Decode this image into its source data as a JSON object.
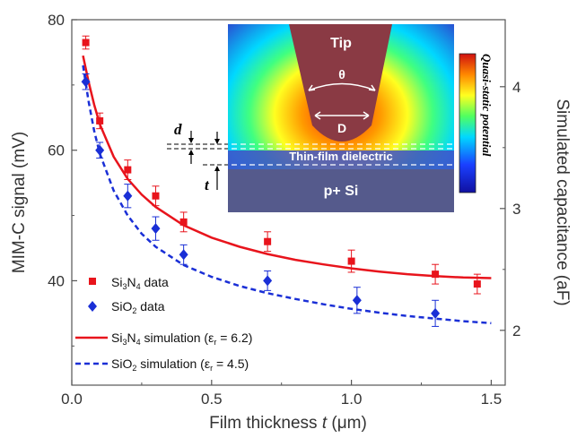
{
  "chart_data": {
    "type": "scatter",
    "title": "",
    "xlabel": "Film thickness t (μm)",
    "xlabel_parts": {
      "before": "Film thickness ",
      "italic": "t",
      "after": " (μm)"
    },
    "ylabel_left": "MIM-C signal (mV)",
    "ylabel_right": "Simulated capacitance (aF)",
    "xlim": [
      0.0,
      1.55
    ],
    "ylim_left": [
      24,
      80
    ],
    "ylim_right": [
      1.55,
      4.55
    ],
    "x_ticks": [
      0.0,
      0.5,
      1.0,
      1.5
    ],
    "x_tick_labels": [
      "0.0",
      "0.5",
      "1.0",
      "1.5"
    ],
    "y_left_ticks": [
      40,
      60,
      80
    ],
    "y_left_tick_labels": [
      "40",
      "60",
      "80"
    ],
    "y_right_ticks": [
      2,
      3,
      4
    ],
    "y_right_tick_labels": [
      "2",
      "3",
      "4"
    ],
    "grid": false,
    "legend_placement": "bottom-left",
    "series": [
      {
        "name": "Si3N4 data",
        "legend_label": {
          "pre": "Si",
          "sub1": "3",
          "mid": "N",
          "sub2": "4",
          "post": " data"
        },
        "kind": "points",
        "marker": "square",
        "color": "#e8141c",
        "x": [
          0.05,
          0.1,
          0.2,
          0.3,
          0.4,
          0.7,
          1.0,
          1.3,
          1.45
        ],
        "y": [
          76.5,
          64.5,
          57,
          53,
          49,
          46,
          43,
          41,
          39.5
        ],
        "err": [
          1.0,
          1.2,
          1.5,
          1.5,
          1.5,
          1.5,
          1.7,
          1.5,
          1.5
        ]
      },
      {
        "name": "SiO2 data",
        "legend_label": {
          "pre": "SiO",
          "sub1": "2",
          "mid": "",
          "sub2": "",
          "post": " data"
        },
        "kind": "points",
        "marker": "diamond",
        "color": "#1a2fd6",
        "x": [
          0.05,
          0.1,
          0.2,
          0.3,
          0.4,
          0.7,
          1.02,
          1.3
        ],
        "y": [
          70.5,
          60,
          53,
          48,
          44,
          40,
          37,
          35
        ],
        "err": [
          1.2,
          1.2,
          1.8,
          1.8,
          1.5,
          1.5,
          2.0,
          2.0
        ]
      },
      {
        "name": "Si3N4 simulation (εr = 6.2)",
        "legend_label": {
          "pre": "Si",
          "sub1": "3",
          "mid": "N",
          "sub2": "4",
          "post": " simulation (ε",
          "eps_sub": "r",
          "tail": " = 6.2)"
        },
        "kind": "line",
        "style": "solid",
        "color": "#e8141c",
        "x": [
          0.04,
          0.06,
          0.08,
          0.1,
          0.15,
          0.2,
          0.25,
          0.3,
          0.4,
          0.5,
          0.6,
          0.7,
          0.8,
          0.9,
          1.0,
          1.1,
          1.2,
          1.3,
          1.4,
          1.5
        ],
        "y": [
          74.5,
          70.5,
          67,
          64,
          59,
          55.6,
          53.2,
          51.3,
          48.5,
          46.6,
          45.2,
          44.1,
          43.2,
          42.5,
          41.9,
          41.4,
          41.0,
          40.7,
          40.5,
          40.4
        ]
      },
      {
        "name": "SiO2 simulation (εr = 4.5)",
        "legend_label": {
          "pre": "SiO",
          "sub1": "2",
          "mid": "",
          "sub2": "",
          "post": " simulation (ε",
          "eps_sub": "r",
          "tail": " = 4.5)"
        },
        "kind": "line",
        "style": "dashed",
        "color": "#1a2fd6",
        "x": [
          0.04,
          0.06,
          0.08,
          0.1,
          0.15,
          0.2,
          0.25,
          0.3,
          0.4,
          0.5,
          0.6,
          0.7,
          0.8,
          0.9,
          1.0,
          1.1,
          1.2,
          1.3,
          1.4,
          1.5
        ],
        "y": [
          73,
          67.5,
          63,
          59.5,
          53.8,
          50,
          47.2,
          45.2,
          42.4,
          40.6,
          39.2,
          38.1,
          37.2,
          36.4,
          35.7,
          35.1,
          34.6,
          34.2,
          33.8,
          33.5
        ]
      }
    ],
    "inset": {
      "tip_label": "Tip",
      "angle_label": "θ",
      "diameter_label": "D",
      "dielectric_label": "Thin-film dielectric",
      "substrate_label": "p+ Si",
      "colorbar_label": "Quasi-static potential",
      "d_label": "d",
      "t_label": "t"
    }
  }
}
